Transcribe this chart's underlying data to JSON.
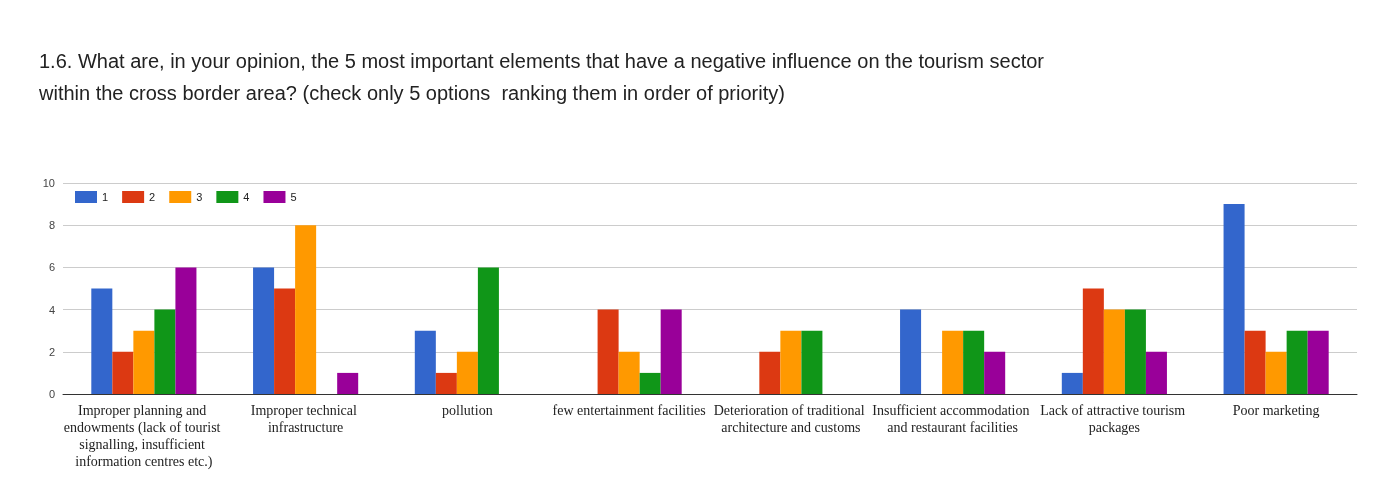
{
  "chart_data": {
    "type": "bar",
    "title": "1.6. What are, in your opinion, the 5 most important elements that have a negative influence on the tourism sector within the cross border area? (check only 5 options  ranking them in order of priority)",
    "categories": [
      "Improper planning and endowments (lack of tourist signalling, insufficient information centres etc.)",
      "Improper technical infrastructure",
      "pollution",
      "few entertainment facilities",
      "Deterioration of traditional architecture and customs",
      "Insufficient accommodation and restaurant facilities",
      "Lack of attractive tourism packages",
      "Poor marketing"
    ],
    "series": [
      {
        "name": "1",
        "color": "#3366cc",
        "values": [
          5,
          6,
          3,
          0,
          0,
          4,
          1,
          9
        ]
      },
      {
        "name": "2",
        "color": "#dc3912",
        "values": [
          2,
          5,
          1,
          4,
          2,
          0,
          5,
          3
        ]
      },
      {
        "name": "3",
        "color": "#ff9900",
        "values": [
          3,
          8,
          2,
          2,
          3,
          3,
          4,
          2
        ]
      },
      {
        "name": "4",
        "color": "#109618",
        "values": [
          4,
          0,
          6,
          1,
          3,
          3,
          4,
          3
        ]
      },
      {
        "name": "5",
        "color": "#990099",
        "values": [
          6,
          1,
          0,
          4,
          0,
          2,
          2,
          3
        ]
      }
    ],
    "ylim": [
      0,
      10
    ],
    "yticks": [
      0,
      2,
      4,
      6,
      8,
      10
    ],
    "grid": true,
    "legend": "top left"
  }
}
